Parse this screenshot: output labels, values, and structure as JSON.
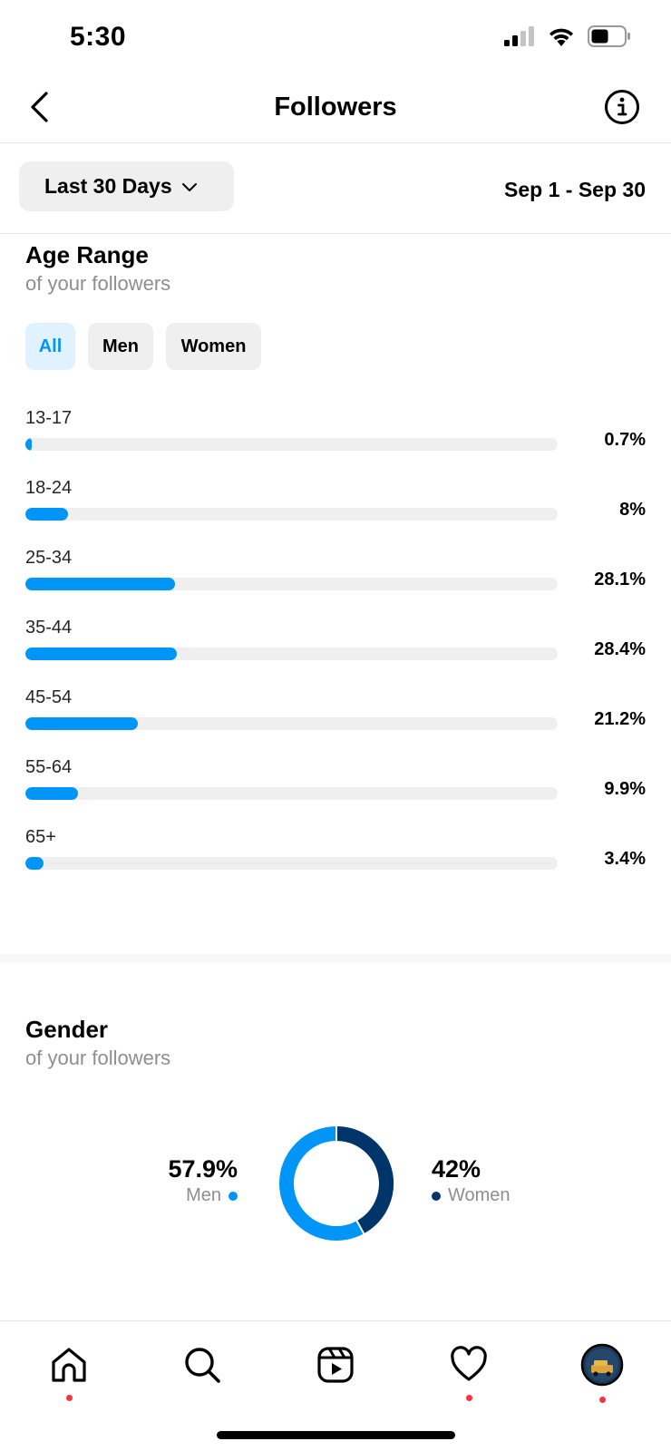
{
  "status_bar": {
    "time": "5:30"
  },
  "header": {
    "title": "Followers"
  },
  "period": {
    "dropdown_label": "Last 30 Days",
    "date_range": "Sep 1 - Sep 30"
  },
  "age": {
    "title": "Age Range",
    "subtitle": "of your followers",
    "filters": [
      "All",
      "Men",
      "Women"
    ],
    "active_filter": "All",
    "rows": [
      {
        "label": "13-17",
        "pct_text": "0.7%",
        "value": 0.7
      },
      {
        "label": "18-24",
        "pct_text": "8%",
        "value": 8
      },
      {
        "label": "25-34",
        "pct_text": "28.1%",
        "value": 28.1
      },
      {
        "label": "35-44",
        "pct_text": "28.4%",
        "value": 28.4
      },
      {
        "label": "45-54",
        "pct_text": "21.2%",
        "value": 21.2
      },
      {
        "label": "55-64",
        "pct_text": "9.9%",
        "value": 9.9
      },
      {
        "label": "65+",
        "pct_text": "3.4%",
        "value": 3.4
      }
    ]
  },
  "gender": {
    "title": "Gender",
    "subtitle": "of your followers",
    "men": {
      "value_text": "57.9%",
      "label": "Men",
      "value": 57.9
    },
    "women": {
      "value_text": "42%",
      "label": "Women",
      "value": 42
    }
  },
  "colors": {
    "accent": "#0095f6",
    "dark_blue": "#003569",
    "track": "#efefef",
    "notification": "#ff3040"
  },
  "tabbar": {
    "icons": [
      "home-icon",
      "search-icon",
      "reels-icon",
      "heart-icon",
      "profile-avatar"
    ]
  }
}
